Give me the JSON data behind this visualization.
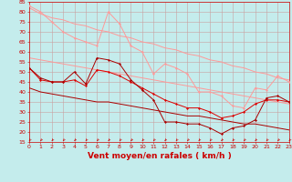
{
  "background_color": "#c4ecec",
  "grid_color": "#c8a0a0",
  "xlabel": "Vent moyen/en rafales ( km/h )",
  "ylim": [
    15,
    85
  ],
  "xlim": [
    0,
    23
  ],
  "yticks": [
    15,
    20,
    25,
    30,
    35,
    40,
    45,
    50,
    55,
    60,
    65,
    70,
    75,
    80,
    85
  ],
  "xticks": [
    0,
    1,
    2,
    3,
    4,
    5,
    6,
    7,
    8,
    9,
    10,
    11,
    12,
    13,
    14,
    15,
    16,
    17,
    18,
    19,
    20,
    21,
    22,
    23
  ],
  "pink_color": "#ff9999",
  "red_color": "#dd0000",
  "dark_red_color": "#aa0000",
  "tick_color": "#cc0000",
  "xlabel_color": "#cc0000",
  "tick_fontsize": 4.5,
  "xlabel_fontsize": 6.5,
  "line1_y": [
    83,
    80,
    75,
    70,
    67,
    65,
    63,
    80,
    74,
    63,
    60,
    49,
    54,
    52,
    49,
    40,
    40,
    38,
    33,
    32,
    42,
    41,
    48,
    45
  ],
  "line2_y": [
    82,
    79,
    77,
    76,
    74,
    73,
    71,
    70,
    68,
    67,
    65,
    64,
    62,
    61,
    59,
    58,
    56,
    55,
    53,
    52,
    50,
    49,
    47,
    46
  ],
  "line3_y": [
    57,
    56,
    55,
    54,
    53,
    52,
    51,
    50,
    49,
    48,
    47,
    46,
    45,
    44,
    43,
    42,
    41,
    40,
    39,
    38,
    37,
    36,
    35,
    34
  ],
  "line4_y": [
    52,
    47,
    45,
    45,
    50,
    44,
    57,
    56,
    54,
    46,
    41,
    36,
    25,
    25,
    24,
    24,
    22,
    19,
    22,
    23,
    26,
    37,
    38,
    35
  ],
  "line5_y": [
    52,
    46,
    45,
    45,
    46,
    43,
    51,
    50,
    48,
    45,
    42,
    39,
    36,
    34,
    32,
    32,
    30,
    27,
    28,
    30,
    34,
    36,
    36,
    35
  ],
  "line6_y": [
    42,
    40,
    39,
    38,
    37,
    36,
    35,
    35,
    34,
    33,
    32,
    31,
    30,
    29,
    28,
    28,
    27,
    26,
    25,
    24,
    24,
    23,
    22,
    21
  ]
}
